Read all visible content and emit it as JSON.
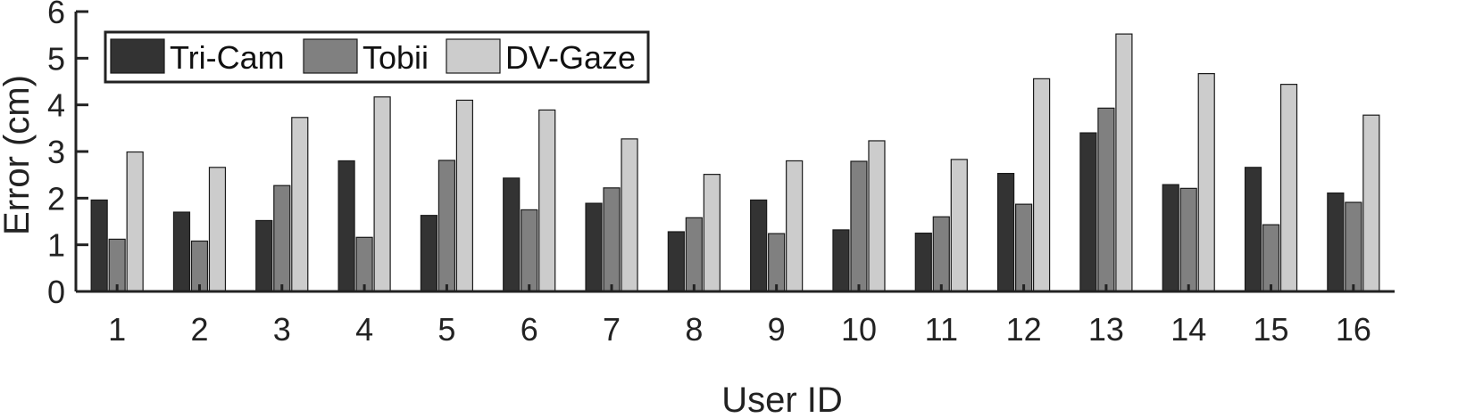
{
  "chart_data": {
    "type": "bar",
    "title": "",
    "xlabel": "User ID",
    "ylabel": "Error (cm)",
    "ylim": [
      0,
      6
    ],
    "yticks": [
      0,
      1,
      2,
      3,
      4,
      5,
      6
    ],
    "grid": false,
    "legend_position": "top-left",
    "categories": [
      "1",
      "2",
      "3",
      "4",
      "5",
      "6",
      "7",
      "8",
      "9",
      "10",
      "11",
      "12",
      "13",
      "14",
      "15",
      "16"
    ],
    "series": [
      {
        "name": "Tri-Cam",
        "color": "#333333",
        "values": [
          1.96,
          1.7,
          1.52,
          2.8,
          1.63,
          2.43,
          1.89,
          1.28,
          1.96,
          1.32,
          1.25,
          2.53,
          3.4,
          2.29,
          2.66,
          2.11
        ]
      },
      {
        "name": "Tobii",
        "color": "#808080",
        "values": [
          1.12,
          1.08,
          2.27,
          1.16,
          2.81,
          1.75,
          2.22,
          1.58,
          1.24,
          2.79,
          1.6,
          1.87,
          3.93,
          2.21,
          1.43,
          1.91
        ]
      },
      {
        "name": "DV-Gaze",
        "color": "#cccccc",
        "values": [
          2.99,
          2.66,
          3.73,
          4.17,
          4.1,
          3.89,
          3.27,
          2.51,
          2.8,
          3.23,
          2.83,
          4.56,
          5.52,
          4.67,
          4.44,
          3.78
        ]
      }
    ]
  }
}
